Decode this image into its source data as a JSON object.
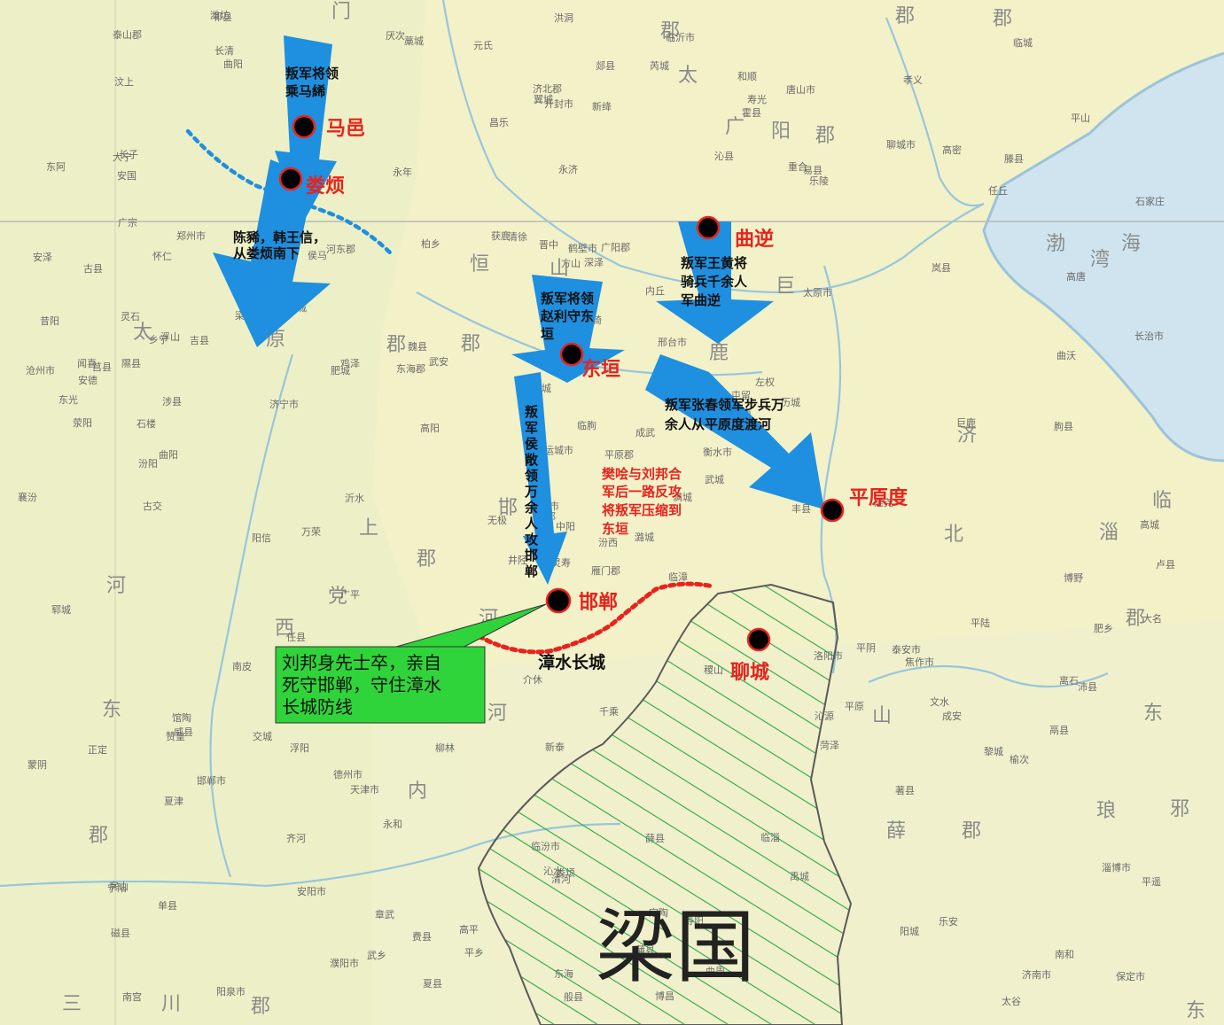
{
  "colors": {
    "land": "#f3f1c8",
    "sea": "#cfe4ef",
    "arrow": "#1f8fe0",
    "city_dot": "#000000",
    "city_ring": "#e8231c",
    "city_text": "#e8231c",
    "wall_line": "#e8231c",
    "front_line": "#1f8fe0",
    "callout_bg": "#2fd43a",
    "hatch": "#2aa644"
  },
  "cities": [
    {
      "name": "马邑"
    },
    {
      "name": "娄烦"
    },
    {
      "name": "曲逆"
    },
    {
      "name": "东垣"
    },
    {
      "name": "平原度"
    },
    {
      "name": "邯郸"
    },
    {
      "name": "聊城"
    }
  ],
  "arrows": [
    {
      "label": [
        "叛军将领",
        "乘马絺"
      ]
    },
    {
      "label": [
        "陈豨，韩王信，",
        "从娄烦南下"
      ]
    },
    {
      "label": [
        "叛军王黄将",
        "骑兵千余人",
        "军曲逆"
      ]
    },
    {
      "label": [
        "叛军将领",
        "赵利守东",
        "垣"
      ]
    },
    {
      "label": [
        "叛军张春领军步兵万",
        "余人从平原度渡河"
      ]
    },
    {
      "label": [
        "叛",
        "军",
        "侯",
        "敞",
        "领",
        "万",
        "余",
        "人",
        "攻",
        "邯",
        "郸"
      ]
    }
  ],
  "notes": {
    "counter_attack": [
      "樊哙与刘邦合",
      "军后一路反攻",
      "将叛军压缩到",
      "东垣"
    ],
    "wall": "漳水长城",
    "callout": [
      "刘邦身先士卒，亲自",
      "死守邯郸，守住漳水",
      "长城防线"
    ],
    "region": "梁国"
  },
  "background_labels": {
    "large": [
      "门",
      "郡",
      "郡",
      "郡",
      "太",
      "广",
      "阳",
      "郡",
      "恒",
      "山",
      "巨",
      "鹿",
      "太",
      "郡",
      "原",
      "郡",
      "邯",
      "上",
      "党",
      "郡",
      "河",
      "东",
      "西",
      "河",
      "内",
      "郡",
      "济",
      "北",
      "郡",
      "临",
      "淄",
      "山",
      "东",
      "薛",
      "郡",
      "琅",
      "邪",
      "三",
      "川",
      "郡",
      "渤",
      "海",
      "湾",
      "东",
      "河"
    ],
    "small": [
      "雁门郡",
      "怀仁",
      "代郡",
      "房山",
      "北京市",
      "天津市",
      "唐山市",
      "广阳郡",
      "易县",
      "满城",
      "曲阳",
      "保定市",
      "曲阳",
      "石家庄",
      "井陉",
      "太原市",
      "阳泉市",
      "晋中",
      "邢台市",
      "邯郸市",
      "武安",
      "磁县",
      "安阳市",
      "鹤壁市",
      "新乡市",
      "焦作市",
      "郑州市",
      "开封市",
      "荥阳",
      "洛阳市",
      "长治市",
      "晋城市",
      "临汾市",
      "运城市",
      "河东郡",
      "聊城市",
      "德州市",
      "济南市",
      "淄博市",
      "泰安市",
      "临沂市",
      "东海郡",
      "济宁市",
      "菏泽",
      "濮阳市",
      "沧州市",
      "衡水市",
      "南宫",
      "清河",
      "武城",
      "夏津",
      "高唐",
      "东阿",
      "平原",
      "禹城",
      "齐河",
      "长清",
      "泰山郡",
      "薛县",
      "滕县",
      "郯县",
      "沂水",
      "莒县",
      "诸城",
      "高密",
      "潍坊",
      "寿光",
      "昌乐",
      "临朐",
      "蒙阴",
      "新泰",
      "费县",
      "平阴",
      "肥城",
      "宁阳",
      "汶上",
      "梁山",
      "郓城",
      "鄄城",
      "定陶",
      "成武",
      "单县",
      "丰县",
      "沛县",
      "东海",
      "朐县",
      "千乘",
      "乐安",
      "博昌",
      "临淄",
      "济北郡",
      "卢县",
      "历城",
      "著县",
      "平原郡",
      "鬲县",
      "安德",
      "般县",
      "重合",
      "乐陵",
      "阳信",
      "厌次",
      "高城",
      "东光",
      "南皮",
      "浮阳",
      "章武",
      "文安",
      "任丘",
      "高阳",
      "博野",
      "安国",
      "深泽",
      "无极",
      "藁城",
      "正定",
      "灵寿",
      "平山",
      "获鹿",
      "元氏",
      "赞皇",
      "临城",
      "内丘",
      "柏乡",
      "隆尧",
      "任县",
      "南和",
      "平乡",
      "巨鹿",
      "广宗",
      "威县",
      "曲周",
      "鸡泽",
      "永年",
      "肥乡",
      "成安",
      "广平",
      "馆陶",
      "大名",
      "魏县",
      "临漳",
      "涉县",
      "黎城",
      "潞城",
      "屯留",
      "长子",
      "高平",
      "阳城",
      "沁水",
      "翼城",
      "曲沃",
      "侯马",
      "闻喜",
      "夏县",
      "平陆",
      "芮城",
      "永济",
      "临猗",
      "万荣",
      "河津",
      "稷山",
      "新绛",
      "襄汾",
      "洪洞",
      "霍县",
      "灵石",
      "介休",
      "平遥",
      "祁县",
      "太谷",
      "榆次",
      "寿阳",
      "昔阳",
      "和顺",
      "左权",
      "武乡",
      "沁县",
      "沁源",
      "安泽",
      "浮山",
      "古县",
      "汾西",
      "蒲县",
      "隰县",
      "大宁",
      "吉县",
      "乡宁",
      "石楼",
      "永和",
      "中阳",
      "离石",
      "柳林",
      "方山",
      "岚县",
      "静乐",
      "娄烦",
      "古交",
      "清徐",
      "文水",
      "交城",
      "汾阳",
      "孝义"
    ]
  }
}
